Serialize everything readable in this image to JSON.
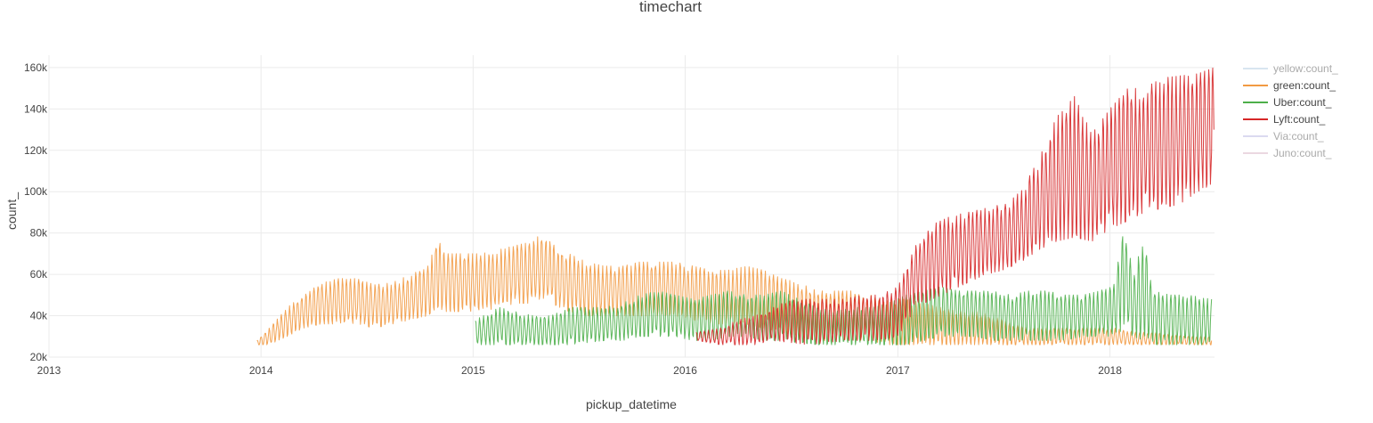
{
  "chart_data": {
    "type": "line",
    "title": "timechart",
    "xlabel": "pickup_datetime",
    "ylabel": "count_",
    "x_range": [
      "2013-01-01",
      "2018-06-30"
    ],
    "y_range": [
      20000,
      166000
    ],
    "x_ticks": [
      {
        "date": "2013-01-01",
        "label": "2013"
      },
      {
        "date": "2014-01-01",
        "label": "2014"
      },
      {
        "date": "2015-01-01",
        "label": "2015"
      },
      {
        "date": "2016-01-01",
        "label": "2016"
      },
      {
        "date": "2017-01-01",
        "label": "2017"
      },
      {
        "date": "2018-01-01",
        "label": "2018"
      }
    ],
    "y_ticks": [
      {
        "value": 20000,
        "label": "20k"
      },
      {
        "value": 40000,
        "label": "40k"
      },
      {
        "value": 60000,
        "label": "60k"
      },
      {
        "value": 80000,
        "label": "80k"
      },
      {
        "value": 100000,
        "label": "100k"
      },
      {
        "value": 120000,
        "label": "120k"
      },
      {
        "value": 140000,
        "label": "140k"
      },
      {
        "value": 160000,
        "label": "160k"
      }
    ],
    "grid": true,
    "legend_position": "right",
    "series": [
      {
        "name": "yellow:count_",
        "color": "#b3cde3",
        "visible": false,
        "x": [],
        "y": []
      },
      {
        "name": "green:count_",
        "color": "#f29a43",
        "visible": true,
        "x": [
          "2013-12-25",
          "2014-01-15",
          "2014-02-15",
          "2014-03-15",
          "2014-04-15",
          "2014-05-15",
          "2014-06-15",
          "2014-07-15",
          "2014-08-15",
          "2014-09-15",
          "2014-10-15",
          "2014-11-01",
          "2014-11-15",
          "2014-12-15",
          "2015-01-15",
          "2015-02-15",
          "2015-03-15",
          "2015-04-15",
          "2015-05-01",
          "2015-05-15",
          "2015-06-15",
          "2015-07-15",
          "2015-08-15",
          "2015-09-15",
          "2015-10-15",
          "2015-11-15",
          "2015-12-15",
          "2016-01-15",
          "2016-02-15",
          "2016-03-15",
          "2016-04-15",
          "2016-05-15",
          "2016-06-15",
          "2016-07-15",
          "2016-08-15",
          "2016-09-15",
          "2016-10-15",
          "2016-11-15",
          "2016-12-15",
          "2017-01-15",
          "2017-02-15",
          "2017-03-15",
          "2017-04-15",
          "2017-05-15",
          "2017-06-15",
          "2017-07-15",
          "2017-08-15",
          "2017-09-15",
          "2017-10-15",
          "2017-11-15",
          "2017-12-15",
          "2018-01-15",
          "2018-02-15",
          "2018-03-15",
          "2018-04-15",
          "2018-05-15",
          "2018-06-25"
        ],
        "high": [
          28000,
          34000,
          44000,
          50000,
          56000,
          58000,
          58000,
          55000,
          56000,
          60000,
          64000,
          77000,
          70000,
          70000,
          70000,
          72000,
          74000,
          76000,
          81000,
          75000,
          70000,
          66000,
          64000,
          64000,
          66000,
          66000,
          66000,
          64000,
          62000,
          62000,
          64000,
          62000,
          58000,
          56000,
          52000,
          52000,
          52000,
          50000,
          48000,
          48000,
          46000,
          44000,
          42000,
          42000,
          40000,
          36000,
          34000,
          34000,
          34000,
          34000,
          34000,
          34000,
          32000,
          32000,
          31000,
          30000,
          30000
        ],
        "low": [
          26000,
          26000,
          30000,
          34000,
          36000,
          36000,
          36000,
          34000,
          36000,
          38000,
          40000,
          44000,
          42000,
          42000,
          42000,
          44000,
          46000,
          46000,
          48000,
          46000,
          42000,
          40000,
          40000,
          40000,
          40000,
          40000,
          40000,
          38000,
          36000,
          36000,
          36000,
          34000,
          32000,
          30000,
          28000,
          28000,
          28000,
          28000,
          26000,
          26000,
          26000,
          26000,
          26000,
          26000,
          26000,
          26000,
          26000,
          26000,
          26000,
          26000,
          26000,
          26000,
          26000,
          26000,
          26000,
          26000,
          26000
        ]
      },
      {
        "name": "Uber:count_",
        "color": "#4daf4a",
        "visible": true,
        "x": [
          "2015-01-05",
          "2015-02-15",
          "2015-03-15",
          "2015-04-15",
          "2015-05-15",
          "2015-06-15",
          "2015-07-15",
          "2015-08-15",
          "2015-09-15",
          "2015-10-15",
          "2015-11-15",
          "2015-12-15",
          "2016-01-15",
          "2016-02-15",
          "2016-03-15",
          "2016-04-15",
          "2016-05-15",
          "2016-06-15",
          "2016-07-15",
          "2016-08-15",
          "2016-09-15",
          "2016-10-15",
          "2016-11-15",
          "2016-12-15",
          "2017-01-15",
          "2017-02-15",
          "2017-03-15",
          "2017-04-15",
          "2017-05-15",
          "2017-06-15",
          "2017-07-15",
          "2017-08-15",
          "2017-09-15",
          "2017-10-15",
          "2017-11-15",
          "2017-12-15",
          "2018-01-10",
          "2018-01-25",
          "2018-02-10",
          "2018-03-01",
          "2018-03-15",
          "2018-04-15",
          "2018-05-15",
          "2018-06-25"
        ],
        "high": [
          38000,
          44000,
          42000,
          40000,
          40000,
          44000,
          44000,
          44000,
          46000,
          50000,
          52000,
          50000,
          48000,
          50000,
          52000,
          50000,
          50000,
          52000,
          48000,
          44000,
          42000,
          44000,
          44000,
          46000,
          50000,
          52000,
          54000,
          52000,
          52000,
          52000,
          50000,
          52000,
          52000,
          50000,
          50000,
          52000,
          56000,
          86000,
          62000,
          76000,
          52000,
          50000,
          50000,
          48000
        ],
        "low": [
          26000,
          26000,
          26000,
          26000,
          26000,
          26000,
          27000,
          28000,
          28000,
          30000,
          30000,
          30000,
          28000,
          28000,
          30000,
          30000,
          28000,
          28000,
          27000,
          26000,
          26000,
          26000,
          26000,
          26000,
          26000,
          28000,
          30000,
          30000,
          30000,
          28000,
          28000,
          28000,
          28000,
          28000,
          30000,
          30000,
          30000,
          34000,
          30000,
          28000,
          26000,
          26000,
          26000,
          26000
        ]
      },
      {
        "name": "Lyft:count_",
        "color": "#d62728",
        "visible": true,
        "x": [
          "2016-01-20",
          "2016-03-01",
          "2016-04-01",
          "2016-05-01",
          "2016-06-01",
          "2016-07-01",
          "2016-08-01",
          "2016-09-01",
          "2016-10-01",
          "2016-11-01",
          "2016-12-01",
          "2017-01-01",
          "2017-02-01",
          "2017-03-01",
          "2017-04-01",
          "2017-05-01",
          "2017-06-01",
          "2017-07-01",
          "2017-08-01",
          "2017-09-01",
          "2017-10-01",
          "2017-11-01",
          "2017-12-01",
          "2018-01-01",
          "2018-02-01",
          "2018-03-01",
          "2018-04-01",
          "2018-05-01",
          "2018-06-01",
          "2018-06-29"
        ],
        "high": [
          32000,
          34000,
          38000,
          40000,
          44000,
          48000,
          48000,
          48000,
          48000,
          50000,
          50000,
          54000,
          74000,
          84000,
          88000,
          90000,
          92000,
          94000,
          100000,
          116000,
          136000,
          146000,
          128000,
          140000,
          150000,
          150000,
          155000,
          156000,
          157000,
          160000
        ],
        "low": [
          28000,
          26000,
          26000,
          26000,
          27000,
          27000,
          26000,
          27000,
          28000,
          28000,
          28000,
          30000,
          44000,
          48000,
          52000,
          56000,
          60000,
          62000,
          66000,
          72000,
          76000,
          78000,
          76000,
          82000,
          86000,
          90000,
          92000,
          94000,
          100000,
          104000
        ]
      },
      {
        "name": "Via:count_",
        "color": "#b9b6e3",
        "visible": false,
        "x": [],
        "y": []
      },
      {
        "name": "Juno:count_",
        "color": "#d9b3c4",
        "visible": false,
        "x": [],
        "y": []
      }
    ]
  }
}
